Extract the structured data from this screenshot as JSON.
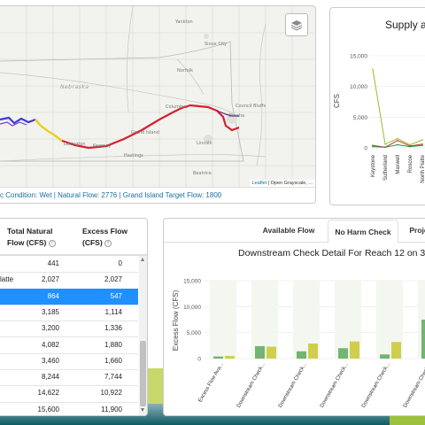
{
  "map": {
    "place_labels": [
      {
        "name": "Yankton",
        "cls": ""
      },
      {
        "name": "Sioux City",
        "cls": ""
      },
      {
        "name": "Norfolk",
        "cls": ""
      },
      {
        "name": "Nebraska",
        "cls": "state"
      },
      {
        "name": "Council Bluffs",
        "cls": ""
      },
      {
        "name": "Omaha",
        "cls": ""
      },
      {
        "name": "Grand Island",
        "cls": ""
      },
      {
        "name": "Kearney",
        "cls": ""
      },
      {
        "name": "Hastings",
        "cls": ""
      },
      {
        "name": "Lincoln",
        "cls": ""
      },
      {
        "name": "Beatrice",
        "cls": ""
      },
      {
        "name": "Lexington",
        "cls": ""
      },
      {
        "name": "Columbus",
        "cls": ""
      }
    ],
    "layers_button_icon": "layers-icon",
    "attribution": {
      "leaflet": "Leaflet",
      "rest": " | Open Grayscale, ..."
    },
    "status_text": "c Condition: Wet | Natural Flow: 2776 | Grand Island Target Flow: 1800",
    "river_colors": {
      "upstream": "#3b3bd6",
      "middle": "#e8d020",
      "downstream": "#d62030"
    }
  },
  "supply": {
    "title": "Supply ar",
    "y_label": "CFS",
    "y_ticks": [
      "15,000",
      "10,000",
      "5,000",
      "0"
    ],
    "x_labels": [
      "Keystone",
      "Sutherland",
      "Maxwell",
      "Roscoe",
      "North Platte"
    ]
  },
  "chart_data": [
    {
      "type": "line",
      "title": "Supply ar",
      "ylabel": "CFS",
      "ylim": [
        0,
        15000
      ],
      "categories": [
        "Keystone",
        "Sutherland",
        "Maxwell",
        "Roscoe",
        "North Platte"
      ],
      "series": [
        {
          "color": "#9fb92a",
          "values": [
            12800,
            600,
            1500,
            500,
            1300
          ]
        },
        {
          "color": "#c0392b",
          "values": [
            400,
            100,
            1200,
            300,
            600
          ]
        },
        {
          "color": "#27884a",
          "values": [
            200,
            100,
            500,
            200,
            400
          ]
        }
      ]
    },
    {
      "type": "bar",
      "title": "Downstream Check Detail For Reach 12 on 3",
      "ylabel": "Excess Flow (CFS)",
      "ylim": [
        0,
        15000
      ],
      "y_ticks": [
        "15,000",
        "10,000",
        "5,000",
        "0"
      ],
      "grid": true,
      "categories": [
        "Excess Flow Ava...",
        "Downstream Check...",
        "Downstream Check...",
        "Downstream Check...",
        "Downstream Check...",
        "Downstream Check..."
      ],
      "series": [
        {
          "color": "#5aa85a",
          "values": [
            400,
            2400,
            1400,
            2000,
            800,
            7500
          ]
        },
        {
          "color": "#c8c830",
          "values": [
            500,
            2300,
            2900,
            3300,
            3200,
            6400
          ]
        }
      ]
    }
  ],
  "table": {
    "headers": {
      "col1": "Total Natural Flow (CFS)",
      "col2": "Excess Flow (CFS)"
    },
    "rows": [
      {
        "name": "",
        "total": "441",
        "excess": "0",
        "selected": false
      },
      {
        "name": "latte",
        "total": "2,027",
        "excess": "2,027",
        "selected": false
      },
      {
        "name": "",
        "total": "864",
        "excess": "547",
        "selected": true
      },
      {
        "name": "",
        "total": "3,185",
        "excess": "1,114",
        "selected": false
      },
      {
        "name": "",
        "total": "3,200",
        "excess": "1,336",
        "selected": false
      },
      {
        "name": "",
        "total": "4,082",
        "excess": "1,880",
        "selected": false
      },
      {
        "name": "",
        "total": "3,460",
        "excess": "1,660",
        "selected": false
      },
      {
        "name": "",
        "total": "8,244",
        "excess": "7,744",
        "selected": false
      },
      {
        "name": "",
        "total": "14,622",
        "excess": "10,922",
        "selected": false
      },
      {
        "name": "",
        "total": "15,600",
        "excess": "11,900",
        "selected": false
      }
    ]
  },
  "detail": {
    "tabs": [
      "Available Flow",
      "No Harm Check",
      "Proje"
    ],
    "active_tab": 1,
    "title": "Downstream Check Detail For Reach 12 on 3"
  }
}
